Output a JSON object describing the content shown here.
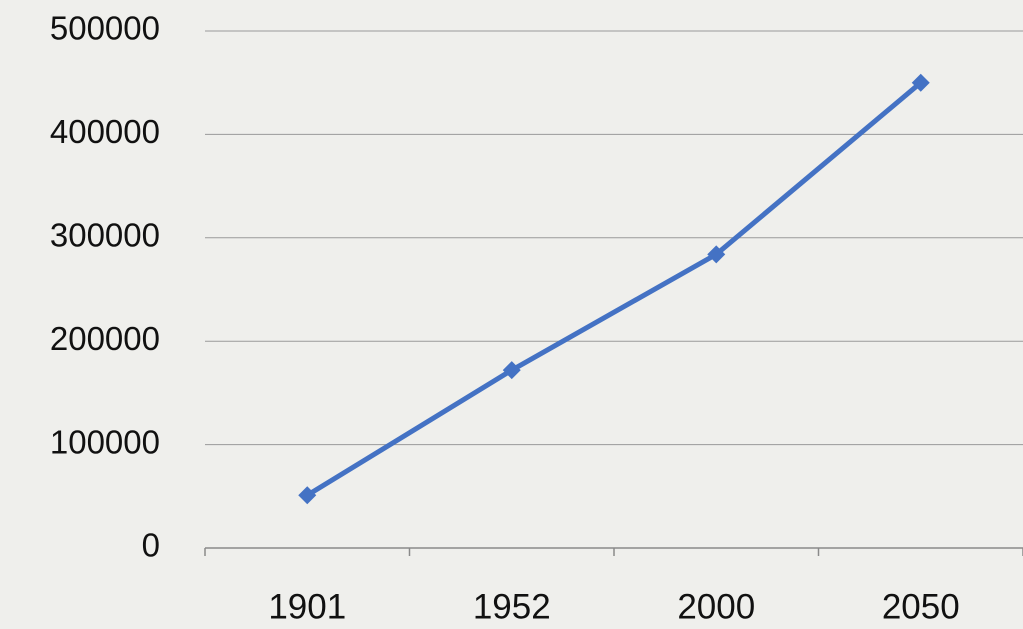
{
  "chart_data": {
    "type": "line",
    "categories": [
      "1901",
      "1952",
      "2000",
      "2050"
    ],
    "values": [
      51000,
      172000,
      284000,
      450000
    ],
    "color": "#4472c4",
    "ylim": [
      0,
      500000
    ],
    "yticks": [
      0,
      100000,
      200000,
      300000,
      400000,
      500000
    ],
    "grid": true
  }
}
